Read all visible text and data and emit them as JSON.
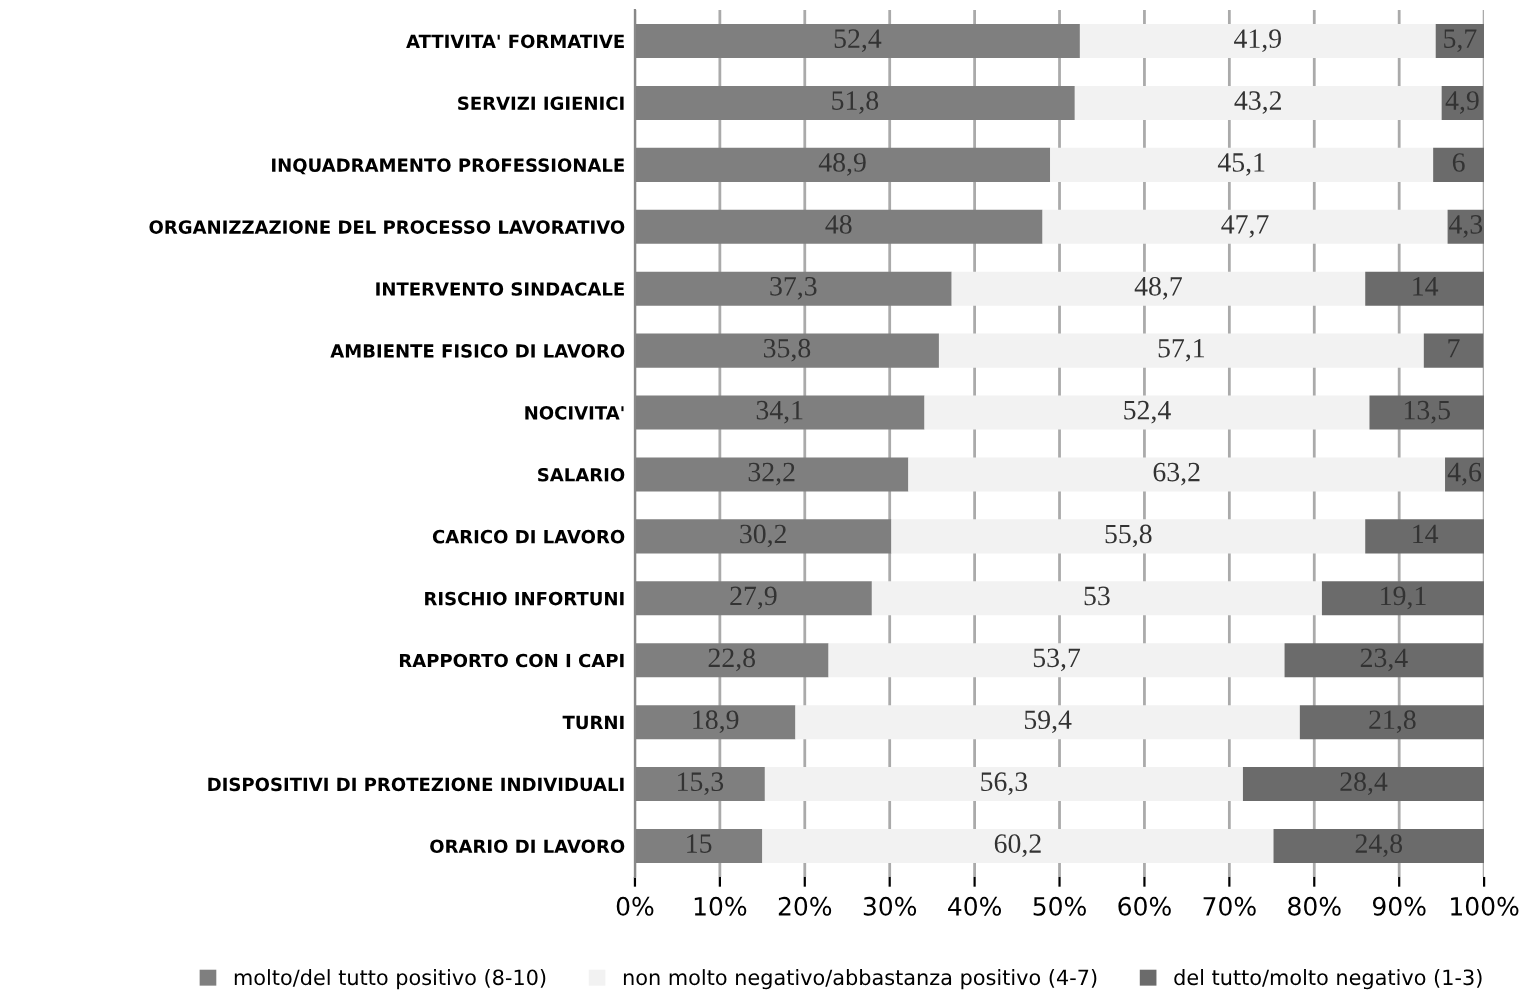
{
  "chart_data": {
    "type": "bar",
    "orientation": "horizontal",
    "stacked": true,
    "categories": [
      "ATTIVITA' FORMATIVE",
      "SERVIZI IGIENICI",
      "INQUADRAMENTO PROFESSIONALE",
      "ORGANIZZAZIONE DEL PROCESSO LAVORATIVO",
      "INTERVENTO SINDACALE",
      "AMBIENTE FISICO DI LAVORO",
      "NOCIVITA'",
      "SALARIO",
      "CARICO DI LAVORO",
      "RISCHIO INFORTUNI",
      "RAPPORTO CON I CAPI",
      "TURNI",
      "DISPOSITIVI DI PROTEZIONE INDIVIDUALI",
      "ORARIO DI LAVORO"
    ],
    "series": [
      {
        "name": "molto/del tutto positivo (8-10)",
        "color": "#7f7f7f",
        "values": [
          52.4,
          51.8,
          48.9,
          48,
          37.3,
          35.8,
          34.1,
          32.2,
          30.2,
          27.9,
          22.8,
          18.9,
          15.3,
          15
        ],
        "value_labels": [
          "52,4",
          "51,8",
          "48,9",
          "48",
          "37,3",
          "35,8",
          "34,1",
          "32,2",
          "30,2",
          "27,9",
          "22,8",
          "18,9",
          "15,3",
          "15"
        ]
      },
      {
        "name": "non molto negativo/abbastanza positivo (4-7)",
        "color": "#f2f2f2",
        "values": [
          41.9,
          43.2,
          45.1,
          47.7,
          48.7,
          57.1,
          52.4,
          63.2,
          55.8,
          53,
          53.7,
          59.4,
          56.3,
          60.2
        ],
        "value_labels": [
          "41,9",
          "43,2",
          "45,1",
          "47,7",
          "48,7",
          "57,1",
          "52,4",
          "63,2",
          "55,8",
          "53",
          "53,7",
          "59,4",
          "56,3",
          "60,2"
        ]
      },
      {
        "name": "del tutto/molto negativo (1-3)",
        "color": "#6b6b6b",
        "values": [
          5.7,
          4.9,
          6,
          4.3,
          14,
          7,
          13.5,
          4.6,
          14,
          19.1,
          23.4,
          21.8,
          28.4,
          24.8
        ],
        "value_labels": [
          "5,7",
          "4,9",
          "6",
          "4,3",
          "14",
          "7",
          "13,5",
          "4,6",
          "14",
          "19,1",
          "23,4",
          "21,8",
          "28,4",
          "24,8"
        ]
      }
    ],
    "xlim": [
      0,
      100
    ],
    "xticks": [
      {
        "value": 0,
        "label": "0%"
      },
      {
        "value": 10,
        "label": "10%"
      },
      {
        "value": 20,
        "label": "20%"
      },
      {
        "value": 30,
        "label": "30%"
      },
      {
        "value": 40,
        "label": "40%"
      },
      {
        "value": 50,
        "label": "50%"
      },
      {
        "value": 60,
        "label": "60%"
      },
      {
        "value": 70,
        "label": "70%"
      },
      {
        "value": 80,
        "label": "80%"
      },
      {
        "value": 90,
        "label": "90%"
      },
      {
        "value": 100,
        "label": "100%"
      }
    ],
    "grid": "x",
    "legend": "bottom"
  }
}
